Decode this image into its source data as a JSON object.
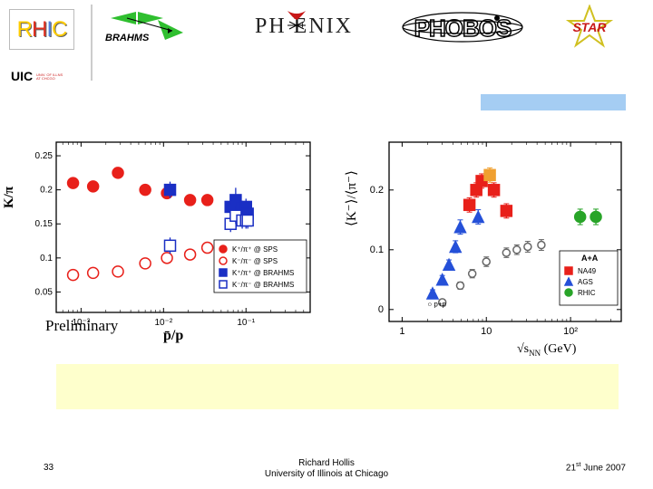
{
  "header": {
    "rhic_letters": [
      "R",
      "H",
      "I",
      "C"
    ],
    "rhic_colors": [
      "#ffcc00",
      "#e03020",
      "#5080e0",
      "#ffcc00"
    ],
    "brahms_label": "BRAHMS",
    "phenix_label": "PH   ENIX",
    "phobos_label": "PHOBOS",
    "star_label": "STAR",
    "uic_label": "UIC",
    "uic_sub": "UNIV. OF ILLNS AT CHCGO"
  },
  "left_chart": {
    "type": "scatter",
    "x_scale": "log",
    "xlim": [
      0.0005,
      0.6
    ],
    "ylim": [
      0.02,
      0.27
    ],
    "xticks": [
      0.001,
      0.01,
      0.1
    ],
    "xtick_labels": [
      "10⁻³",
      "10⁻²",
      "10⁻¹"
    ],
    "yticks": [
      0.05,
      0.1,
      0.15,
      0.2,
      0.25
    ],
    "ytick_labels": [
      "0.05",
      "0.1",
      "0.15",
      "0.2",
      "0.25"
    ],
    "ylabel": "K/π",
    "xlabel": "p̄/p",
    "preliminary": "Preliminary",
    "legend": [
      {
        "label": "K⁺/π⁺ @ SPS",
        "marker": "circle",
        "fill": "#e8201a",
        "open": false
      },
      {
        "label": "K⁻/π⁻ @ SPS",
        "marker": "circle",
        "fill": "#e8201a",
        "open": true
      },
      {
        "label": "K⁺/π⁺ @ BRAHMS",
        "marker": "square",
        "fill": "#1a2fc4",
        "open": false
      },
      {
        "label": "K⁻/π⁻ @ BRAHMS",
        "marker": "square",
        "fill": "#1a2fc4",
        "open": true
      }
    ],
    "series": [
      {
        "name": "Kp_pip_SPS",
        "marker": "circle",
        "color": "#e8201a",
        "open": false,
        "size": 6,
        "points": [
          {
            "x": 0.0008,
            "y": 0.21,
            "ey": 0.006
          },
          {
            "x": 0.0014,
            "y": 0.205,
            "ey": 0.006
          },
          {
            "x": 0.0028,
            "y": 0.225,
            "ey": 0.006
          },
          {
            "x": 0.006,
            "y": 0.2,
            "ey": 0.006
          },
          {
            "x": 0.011,
            "y": 0.195,
            "ey": 0.006
          },
          {
            "x": 0.021,
            "y": 0.185,
            "ey": 0.006
          },
          {
            "x": 0.034,
            "y": 0.185,
            "ey": 0.006
          }
        ]
      },
      {
        "name": "Km_pim_SPS",
        "marker": "circle",
        "color": "#e8201a",
        "open": true,
        "size": 6,
        "points": [
          {
            "x": 0.0008,
            "y": 0.075,
            "ey": 0.005
          },
          {
            "x": 0.0014,
            "y": 0.078,
            "ey": 0.005
          },
          {
            "x": 0.0028,
            "y": 0.08,
            "ey": 0.005
          },
          {
            "x": 0.006,
            "y": 0.092,
            "ey": 0.005
          },
          {
            "x": 0.011,
            "y": 0.1,
            "ey": 0.005
          },
          {
            "x": 0.021,
            "y": 0.105,
            "ey": 0.006
          },
          {
            "x": 0.034,
            "y": 0.115,
            "ey": 0.006
          }
        ]
      },
      {
        "name": "Kp_pip_BRAHMS",
        "marker": "square",
        "color": "#1a2fc4",
        "open": false,
        "size": 6,
        "points": [
          {
            "x": 0.012,
            "y": 0.2,
            "ey": 0.012
          },
          {
            "x": 0.065,
            "y": 0.175,
            "ey": 0.012
          },
          {
            "x": 0.075,
            "y": 0.185,
            "ey": 0.018
          },
          {
            "x": 0.09,
            "y": 0.172,
            "ey": 0.012
          },
          {
            "x": 0.1,
            "y": 0.175,
            "ey": 0.012
          },
          {
            "x": 0.105,
            "y": 0.165,
            "ey": 0.012
          }
        ]
      },
      {
        "name": "Km_pim_BRAHMS",
        "marker": "square",
        "color": "#1a2fc4",
        "open": true,
        "size": 6,
        "points": [
          {
            "x": 0.012,
            "y": 0.118,
            "ey": 0.012
          },
          {
            "x": 0.065,
            "y": 0.15,
            "ey": 0.012
          },
          {
            "x": 0.075,
            "y": 0.162,
            "ey": 0.012
          },
          {
            "x": 0.09,
            "y": 0.155,
            "ey": 0.012
          },
          {
            "x": 0.1,
            "y": 0.155,
            "ey": 0.012
          },
          {
            "x": 0.105,
            "y": 0.155,
            "ey": 0.012
          }
        ]
      }
    ]
  },
  "right_chart": {
    "type": "scatter",
    "x_scale": "log",
    "xlim": [
      0.7,
      400
    ],
    "ylim": [
      -0.02,
      0.28
    ],
    "xticks": [
      1,
      10,
      100
    ],
    "xtick_labels": [
      "1",
      "10",
      "10²"
    ],
    "yticks": [
      0,
      0.1,
      0.2
    ],
    "ytick_labels": [
      "0",
      "0.1",
      "0.2"
    ],
    "ylabel": "⟨K⁻⟩/⟨π⁻⟩",
    "xlabel": "√s_{NN} (GeV)",
    "legend_title": "A+A",
    "legend": [
      {
        "label": "NA49",
        "marker": "square",
        "fill": "#e8201a"
      },
      {
        "label": "AGS",
        "marker": "triangle",
        "fill": "#2550d8"
      },
      {
        "label": "RHIC",
        "marker": "circle",
        "fill": "#28a428"
      }
    ],
    "pp_label": "○ p+p",
    "series": [
      {
        "name": "AGS",
        "marker": "triangle",
        "color": "#2550d8",
        "open": false,
        "size": 6,
        "points": [
          {
            "x": 2.3,
            "y": 0.027,
            "ey": 0.006
          },
          {
            "x": 3.0,
            "y": 0.05,
            "ey": 0.007
          },
          {
            "x": 3.6,
            "y": 0.075,
            "ey": 0.008
          },
          {
            "x": 4.3,
            "y": 0.105,
            "ey": 0.01
          },
          {
            "x": 4.9,
            "y": 0.138,
            "ey": 0.012
          },
          {
            "x": 8.0,
            "y": 0.155,
            "ey": 0.012
          }
        ]
      },
      {
        "name": "NA49",
        "marker": "square",
        "color": "#e8201a",
        "open": false,
        "size": 6,
        "points": [
          {
            "x": 6.3,
            "y": 0.175,
            "ey": 0.012
          },
          {
            "x": 7.6,
            "y": 0.2,
            "ey": 0.012
          },
          {
            "x": 8.8,
            "y": 0.215,
            "ey": 0.012
          },
          {
            "x": 12.3,
            "y": 0.2,
            "ey": 0.012
          },
          {
            "x": 17.3,
            "y": 0.165,
            "ey": 0.012
          }
        ]
      },
      {
        "name": "NA49b",
        "marker": "square",
        "color": "#f0a030",
        "open": false,
        "size": 6,
        "points": [
          {
            "x": 11.0,
            "y": 0.225,
            "ey": 0.012
          }
        ]
      },
      {
        "name": "RHIC",
        "marker": "circle",
        "color": "#28a428",
        "open": false,
        "size": 6,
        "points": [
          {
            "x": 130,
            "y": 0.155,
            "ey": 0.013
          },
          {
            "x": 200,
            "y": 0.155,
            "ey": 0.013
          }
        ]
      },
      {
        "name": "pp",
        "marker": "circle",
        "color": "#666",
        "open": true,
        "size": 4,
        "points": [
          {
            "x": 3.0,
            "y": 0.012,
            "ey": 0.005
          },
          {
            "x": 4.9,
            "y": 0.04,
            "ey": 0.006
          },
          {
            "x": 6.8,
            "y": 0.06,
            "ey": 0.007
          },
          {
            "x": 10.0,
            "y": 0.08,
            "ey": 0.008
          },
          {
            "x": 17.3,
            "y": 0.095,
            "ey": 0.008
          },
          {
            "x": 23.0,
            "y": 0.1,
            "ey": 0.008
          },
          {
            "x": 31.0,
            "y": 0.105,
            "ey": 0.009
          },
          {
            "x": 45.0,
            "y": 0.108,
            "ey": 0.009
          }
        ]
      }
    ]
  },
  "colors": {
    "blue_bar": "#a5cdf3",
    "yellow_band": "#feffcc"
  },
  "footer": {
    "page": "33",
    "author": "Richard Hollis",
    "affiliation": "University of Illinois at Chicago",
    "date_day": "21",
    "date_suffix": "st",
    "date_rest": " June 2007"
  }
}
